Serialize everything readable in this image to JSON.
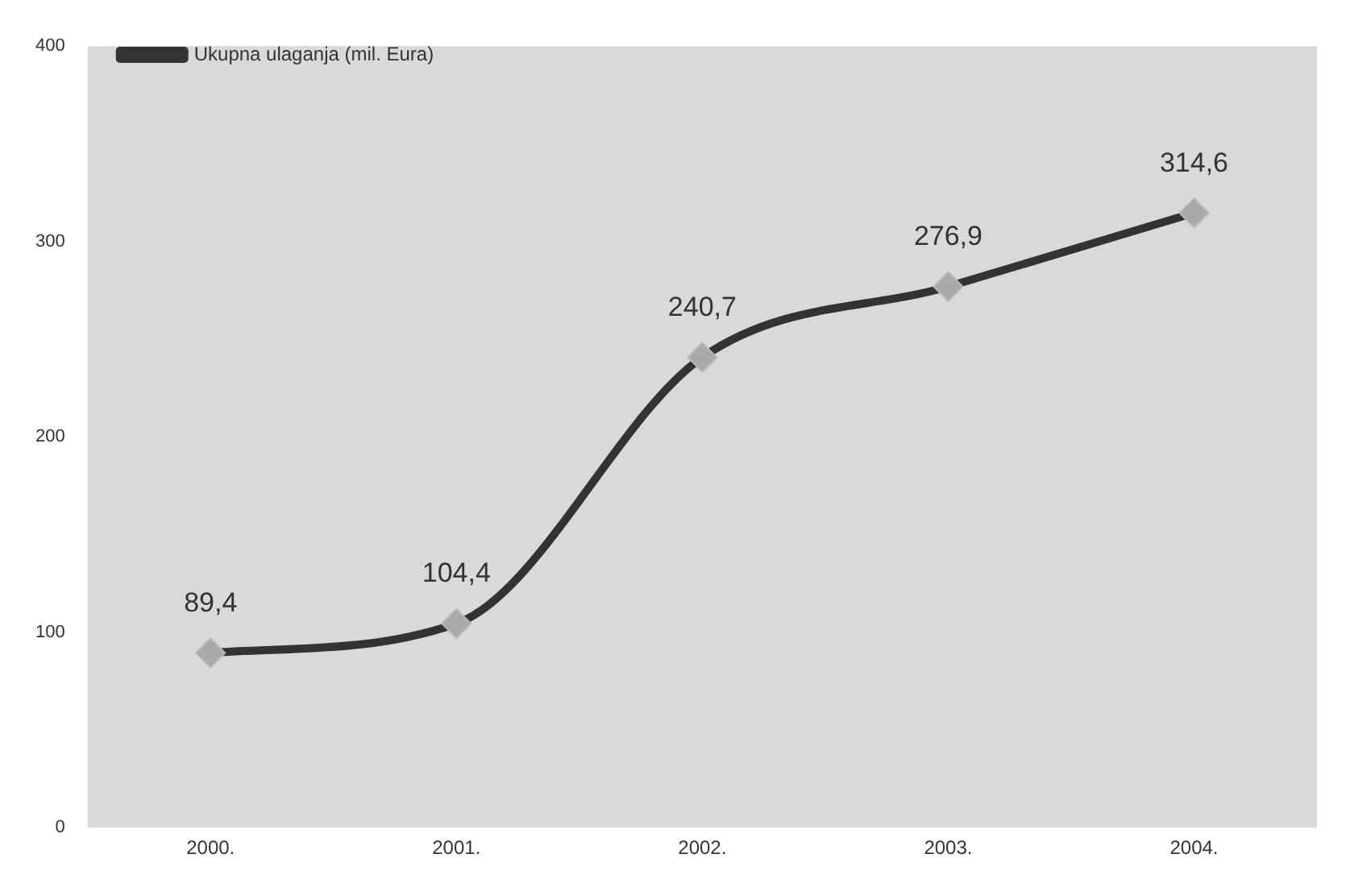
{
  "chart_data": {
    "type": "line",
    "categories": [
      "2000.",
      "2001.",
      "2002.",
      "2003.",
      "2004."
    ],
    "series": [
      {
        "name": "Ukupna ulaganja (mil. Eura)",
        "color": "#333333",
        "values": [
          89.4,
          104.4,
          240.7,
          276.9,
          314.6
        ],
        "value_labels": [
          "89,4",
          "104,4",
          "240,7",
          "276,9",
          "314,6"
        ]
      }
    ],
    "ylim": [
      0,
      400
    ],
    "yticks": [
      0,
      100,
      200,
      300,
      400
    ],
    "grid": false,
    "legend": "top left",
    "marker": "diamond",
    "line_style": "solid"
  }
}
